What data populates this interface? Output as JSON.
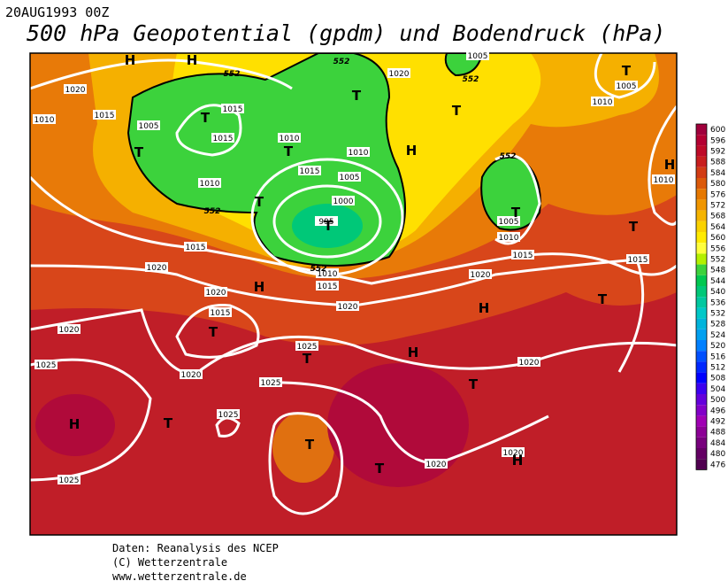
{
  "header": {
    "date": "20AUG1993 00Z",
    "title": "500 hPa Geopotential (gpdm) und Bodendruck (hPa)"
  },
  "map": {
    "isobar_labels": [
      "1020",
      "1010",
      "1015",
      "1005",
      "1015",
      "1015",
      "1010",
      "1015",
      "1010",
      "1005",
      "1000",
      "995",
      "1010",
      "1015",
      "1020",
      "1010",
      "1015",
      "1020",
      "1005",
      "1010",
      "1005",
      "1010",
      "1015",
      "1015",
      "1020",
      "1020",
      "1015",
      "1020",
      "1020",
      "1025",
      "1025",
      "1020",
      "1025",
      "1020",
      "1025",
      "1020",
      "1020",
      "1025",
      "1010",
      "1005"
    ],
    "centers": [
      "H",
      "H",
      "T",
      "T",
      "T",
      "T",
      "T",
      "H",
      "T",
      "T",
      "T",
      "T",
      "T",
      "H",
      "T",
      "T",
      "H",
      "T",
      "H",
      "H",
      "T",
      "T",
      "H",
      "T",
      "T",
      "T",
      "H",
      "H"
    ],
    "contour_labels": [
      "552",
      "552",
      "552",
      "552",
      "552",
      "552"
    ]
  },
  "colorbar": {
    "ticks": [
      600,
      596,
      592,
      588,
      584,
      580,
      576,
      572,
      568,
      564,
      560,
      556,
      552,
      548,
      544,
      540,
      536,
      532,
      528,
      524,
      520,
      516,
      512,
      508,
      504,
      500,
      496,
      492,
      488,
      484,
      480,
      476
    ],
    "colors": [
      "#a0003c",
      "#b40032",
      "#be0a28",
      "#c81e1e",
      "#d23c14",
      "#dc5a0a",
      "#e67800",
      "#f09600",
      "#f5b400",
      "#fad200",
      "#ffeb00",
      "#ffff3c",
      "#b4f000",
      "#3cd23c",
      "#00c850",
      "#00c878",
      "#00c8a0",
      "#00c8c8",
      "#00b4dc",
      "#00a0f0",
      "#0080ff",
      "#0050ff",
      "#0028ff",
      "#0000ff",
      "#3c00f0",
      "#6400dc",
      "#8200c8",
      "#a000b4",
      "#8c0096",
      "#78007d",
      "#640064",
      "#500050"
    ]
  },
  "footer": {
    "lines": [
      "Daten: Reanalysis des NCEP",
      "(C) Wetterzentrale",
      "www.wetterzentrale.de"
    ]
  }
}
